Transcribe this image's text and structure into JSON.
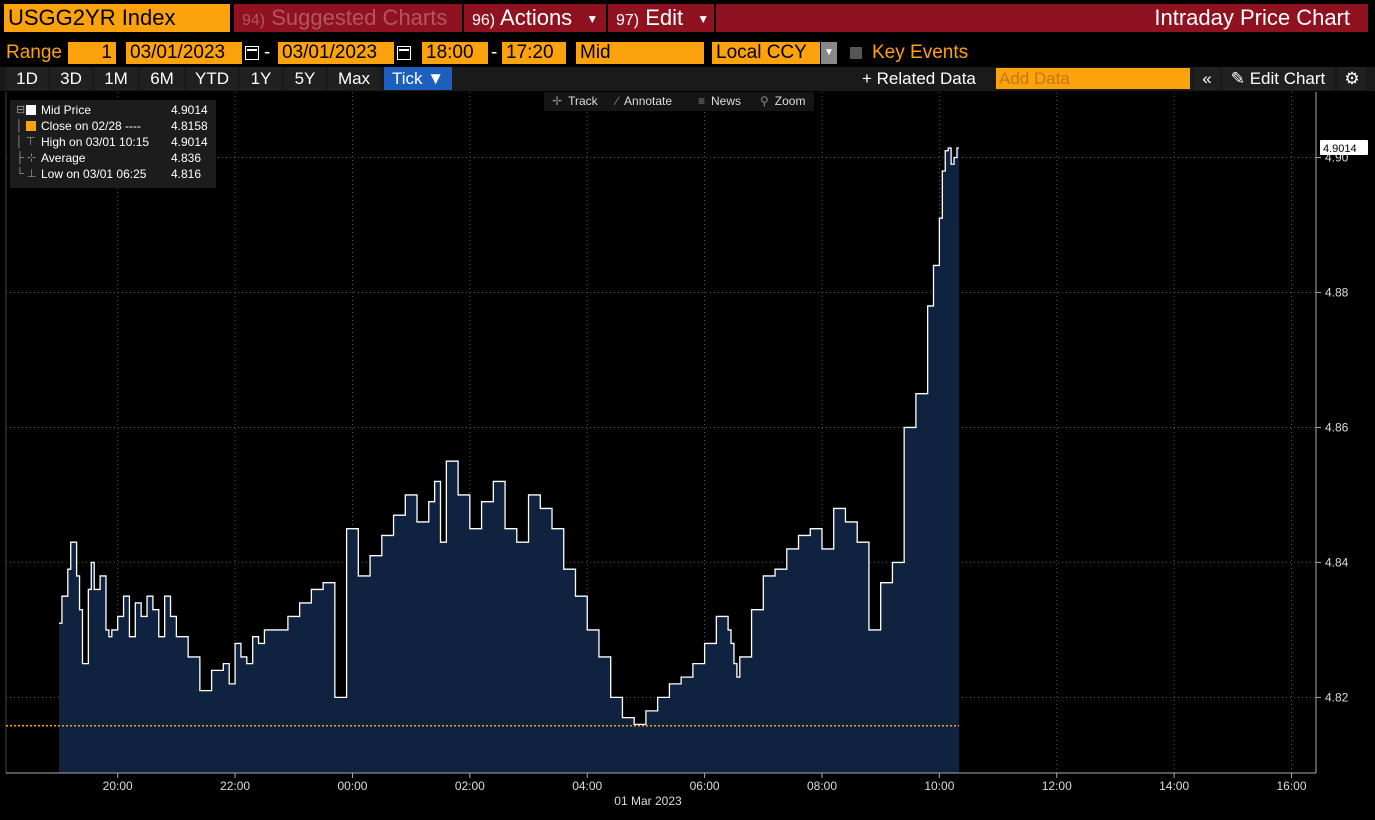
{
  "header": {
    "ticker": "USGG2YR Index",
    "menus": [
      {
        "num": "94)",
        "label": "Suggested Charts",
        "dim": true
      },
      {
        "num": "96)",
        "label": "Actions",
        "caret": true
      },
      {
        "num": "97)",
        "label": "Edit",
        "caret": true
      }
    ],
    "title": "Intraday Price Chart"
  },
  "controls": {
    "range_label": "Range",
    "range_value": "1",
    "start_date": "03/01/2023",
    "end_date": "03/01/2023",
    "start_time": "18:00",
    "end_time": "17:20",
    "price_type": "Mid",
    "currency": "Local CCY",
    "key_events_label": "Key Events"
  },
  "periods": [
    "1D",
    "3D",
    "1M",
    "6M",
    "YTD",
    "1Y",
    "5Y",
    "Max"
  ],
  "active_period": "Tick ▼",
  "toolbar": {
    "related_data": "+ Related Data",
    "add_data_placeholder": "Add Data",
    "collapse_icon": "«",
    "edit_chart": "Edit Chart",
    "settings_icon": "⚙"
  },
  "legend": [
    {
      "name": "Mid Price",
      "value": "4.9014",
      "symbol": "swatch-white"
    },
    {
      "name": "Close on 02/28 ----",
      "value": "4.8158",
      "symbol": "swatch-orange"
    },
    {
      "name": "High on 03/01 10:15",
      "value": "4.9014",
      "symbol": "high-marker"
    },
    {
      "name": "Average",
      "value": "4.836",
      "symbol": "average-marker"
    },
    {
      "name": "Low on 03/01 06:25",
      "value": "4.816",
      "symbol": "low-marker"
    }
  ],
  "chart_tools": [
    "Track",
    "Annotate",
    "News",
    "Zoom"
  ],
  "colors": {
    "orange": "#fca20c",
    "menu_red": "#8f1220",
    "area_fill": "#0f2240",
    "line": "#ffffff",
    "active_blue": "#1d5fbf"
  },
  "chart_data": {
    "type": "area",
    "x_unit": "hours since 18:00 on 28 Feb 2023",
    "x_tick_labels": [
      "20:00",
      "22:00",
      "00:00",
      "02:00",
      "04:00",
      "06:00",
      "08:00",
      "10:00",
      "12:00",
      "14:00",
      "16:00"
    ],
    "x_ticks": [
      2,
      4,
      6,
      8,
      10,
      12,
      14,
      16,
      18,
      20,
      22
    ],
    "date_label": "01 Mar 2023",
    "xlim": [
      1,
      23.32
    ],
    "y_ticks": [
      4.82,
      4.84,
      4.86,
      4.88,
      4.9
    ],
    "y_tick_labels": [
      "4.82",
      "4.84",
      "4.86",
      "4.88",
      "4.90"
    ],
    "ylim": [
      4.8088,
      4.9097
    ],
    "last_value_label": "4.9014",
    "reference_line": {
      "name": "Close on 02/28",
      "value": 4.8158
    },
    "series": [
      {
        "name": "Mid Price",
        "x": [
          1.0,
          1.05,
          1.15,
          1.2,
          1.3,
          1.35,
          1.4,
          1.5,
          1.55,
          1.6,
          1.7,
          1.8,
          1.85,
          1.9,
          2.0,
          2.1,
          2.2,
          2.3,
          2.4,
          2.5,
          2.6,
          2.7,
          2.8,
          2.9,
          3.0,
          3.2,
          3.4,
          3.6,
          3.8,
          3.9,
          4.0,
          4.1,
          4.2,
          4.3,
          4.4,
          4.5,
          4.7,
          4.9,
          5.1,
          5.3,
          5.5,
          5.7,
          5.9,
          6.1,
          6.3,
          6.5,
          6.7,
          6.9,
          7.1,
          7.3,
          7.4,
          7.5,
          7.6,
          7.8,
          8.0,
          8.2,
          8.4,
          8.6,
          8.8,
          9.0,
          9.2,
          9.4,
          9.6,
          9.8,
          10.0,
          10.2,
          10.4,
          10.6,
          10.8,
          11.0,
          11.2,
          11.4,
          11.6,
          11.8,
          12.0,
          12.2,
          12.4,
          12.45,
          12.5,
          12.55,
          12.6,
          12.8,
          13.0,
          13.2,
          13.4,
          13.6,
          13.8,
          14.0,
          14.2,
          14.4,
          14.6,
          14.8,
          15.0,
          15.2,
          15.4,
          15.6,
          15.8,
          15.9,
          16.0,
          16.05,
          16.1,
          16.15,
          16.2,
          16.25,
          16.3
        ],
        "values": [
          4.831,
          4.835,
          4.839,
          4.843,
          4.838,
          4.833,
          4.825,
          4.836,
          4.84,
          4.836,
          4.838,
          4.83,
          4.829,
          4.83,
          4.832,
          4.835,
          4.829,
          4.834,
          4.832,
          4.835,
          4.833,
          4.829,
          4.835,
          4.832,
          4.829,
          4.826,
          4.821,
          4.824,
          4.825,
          4.822,
          4.828,
          4.826,
          4.825,
          4.829,
          4.828,
          4.83,
          4.83,
          4.832,
          4.834,
          4.836,
          4.837,
          4.82,
          4.845,
          4.838,
          4.841,
          4.844,
          4.847,
          4.85,
          4.846,
          4.849,
          4.852,
          4.843,
          4.855,
          4.85,
          4.845,
          4.849,
          4.852,
          4.845,
          4.843,
          4.85,
          4.848,
          4.845,
          4.839,
          4.835,
          4.83,
          4.826,
          4.82,
          4.817,
          4.816,
          4.818,
          4.82,
          4.822,
          4.823,
          4.825,
          4.828,
          4.832,
          4.83,
          4.828,
          4.825,
          4.823,
          4.826,
          4.833,
          4.838,
          4.839,
          4.842,
          4.844,
          4.845,
          4.842,
          4.848,
          4.846,
          4.843,
          4.83,
          4.837,
          4.84,
          4.86,
          4.865,
          4.878,
          4.884,
          4.891,
          4.898,
          4.901,
          4.9014,
          4.899,
          4.9,
          4.9014
        ]
      }
    ],
    "grid": true,
    "legend_position": "top-left"
  }
}
